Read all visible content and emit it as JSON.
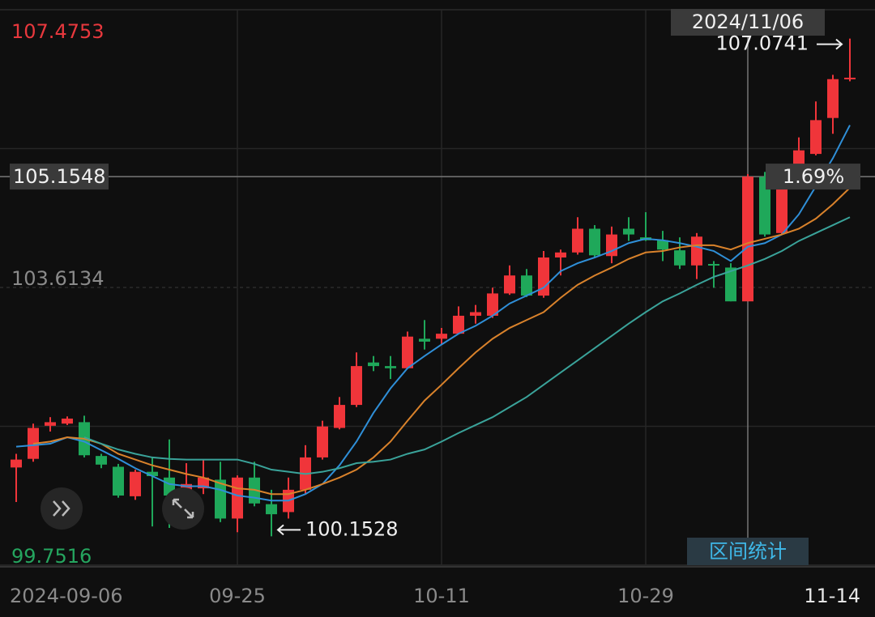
{
  "chart_data": {
    "type": "candlestick",
    "categories": [
      "2024-09-06",
      null,
      null,
      null,
      null,
      null,
      null,
      null,
      null,
      null,
      null,
      null,
      null,
      "09-25",
      null,
      null,
      null,
      null,
      null,
      null,
      null,
      null,
      null,
      null,
      null,
      "10-11",
      null,
      null,
      null,
      null,
      null,
      null,
      null,
      null,
      null,
      null,
      null,
      "10-29",
      null,
      null,
      null,
      null,
      null,
      null,
      null,
      null,
      null,
      null,
      null,
      "11-14"
    ],
    "open": [
      101.11,
      101.23,
      101.69,
      101.72,
      101.74,
      101.27,
      101.12,
      100.71,
      101.05,
      100.97,
      100.8,
      100.82,
      100.94,
      100.4,
      100.97,
      100.6,
      100.49,
      100.8,
      101.25,
      101.66,
      101.98,
      102.57,
      102.52,
      102.49,
      102.9,
      102.9,
      102.97,
      103.22,
      103.22,
      103.53,
      103.78,
      103.5,
      104.03,
      104.1,
      104.43,
      104.05,
      104.43,
      104.31,
      104.27,
      104.13,
      103.92,
      103.94,
      103.89,
      103.42,
      105.15,
      104.37,
      105.13,
      105.47,
      105.97,
      106.51
    ],
    "high": [
      101.3,
      101.72,
      101.81,
      101.82,
      101.83,
      101.3,
      101.16,
      101.08,
      101.25,
      101.5,
      101.17,
      101.22,
      101.19,
      101.0,
      101.19,
      100.8,
      100.97,
      101.42,
      101.76,
      102.09,
      102.71,
      102.66,
      102.66,
      103.0,
      103.16,
      103.05,
      103.35,
      103.37,
      103.61,
      103.92,
      103.87,
      104.12,
      104.14,
      104.59,
      104.48,
      104.46,
      104.59,
      104.66,
      104.4,
      104.31,
      104.37,
      103.98,
      103.95,
      105.19,
      105.22,
      105.13,
      105.7,
      106.2,
      106.57,
      107.0741
    ],
    "low": [
      100.63,
      101.19,
      101.61,
      101.7,
      101.25,
      101.1,
      100.69,
      100.66,
      100.29,
      100.27,
      100.35,
      100.74,
      100.35,
      100.21,
      100.57,
      100.1528,
      100.4,
      100.74,
      101.22,
      101.64,
      101.95,
      102.45,
      102.34,
      102.49,
      102.75,
      102.82,
      102.97,
      103.11,
      103.19,
      103.51,
      103.48,
      103.47,
      103.78,
      104.07,
      104.03,
      103.95,
      104.26,
      104.26,
      103.98,
      103.87,
      103.73,
      103.61,
      103.42,
      103.42,
      104.32,
      104.35,
      105.11,
      105.45,
      105.75,
      106.48
    ],
    "close": [
      101.22,
      101.66,
      101.74,
      101.79,
      101.28,
      101.15,
      100.72,
      101.05,
      100.99,
      100.72,
      100.88,
      100.97,
      100.4,
      100.97,
      100.61,
      100.46,
      100.8,
      101.25,
      101.68,
      101.98,
      102.52,
      102.52,
      102.49,
      102.93,
      102.86,
      102.97,
      103.22,
      103.27,
      103.53,
      103.78,
      103.5,
      104.03,
      104.1,
      104.43,
      104.06,
      104.35,
      104.35,
      104.27,
      104.14,
      103.92,
      104.32,
      103.92,
      103.42,
      105.1548,
      104.35,
      105.02,
      105.52,
      105.94,
      106.51,
      106.53
    ],
    "up_color": "#f0353a",
    "down_color": "#1fa85a",
    "moving_averages": [
      {
        "color": "#2f8fd8",
        "values": [
          101.4,
          101.42,
          101.44,
          101.53,
          101.47,
          101.35,
          101.23,
          101.1,
          100.99,
          100.88,
          100.85,
          100.85,
          100.8,
          100.72,
          100.69,
          100.65,
          100.65,
          100.74,
          100.88,
          101.14,
          101.47,
          101.87,
          102.21,
          102.49,
          102.66,
          102.82,
          102.97,
          103.08,
          103.22,
          103.39,
          103.5,
          103.61,
          103.84,
          103.95,
          104.03,
          104.12,
          104.23,
          104.29,
          104.27,
          104.23,
          104.18,
          104.12,
          103.98,
          104.18,
          104.23,
          104.35,
          104.63,
          105.02,
          105.41,
          105.87
        ]
      },
      {
        "color": "#d9822b",
        "values": [
          null,
          101.44,
          101.47,
          101.53,
          101.51,
          101.44,
          101.3,
          101.22,
          101.14,
          101.08,
          101.02,
          100.97,
          100.89,
          100.82,
          100.8,
          100.74,
          100.74,
          100.8,
          100.88,
          100.97,
          101.08,
          101.25,
          101.47,
          101.76,
          102.04,
          102.26,
          102.49,
          102.71,
          102.9,
          103.05,
          103.16,
          103.27,
          103.47,
          103.65,
          103.78,
          103.89,
          104.01,
          104.1,
          104.12,
          104.17,
          104.2,
          104.2,
          104.14,
          104.23,
          104.29,
          104.35,
          104.43,
          104.57,
          104.77,
          105.0
        ]
      },
      {
        "color": "#3aa39a",
        "values": [
          null,
          null,
          null,
          null,
          101.53,
          101.44,
          101.36,
          101.3,
          101.25,
          101.23,
          101.22,
          101.22,
          101.22,
          101.22,
          101.16,
          101.08,
          101.05,
          101.02,
          101.05,
          101.1,
          101.17,
          101.19,
          101.22,
          101.3,
          101.36,
          101.47,
          101.59,
          101.7,
          101.81,
          101.95,
          102.09,
          102.26,
          102.43,
          102.6,
          102.77,
          102.94,
          103.11,
          103.27,
          103.42,
          103.53,
          103.65,
          103.76,
          103.84,
          103.92,
          104.01,
          104.12,
          104.26,
          104.37,
          104.48,
          104.59
        ]
      }
    ],
    "ylim": [
      99.7516,
      107.4753
    ],
    "yticks": [
      107.4753,
      103.6134,
      99.7516
    ],
    "ytick_colors": [
      "#e8383d",
      "#8a8a8a",
      "#25a55f"
    ],
    "grid": true,
    "crosshair": {
      "index": 43,
      "date": "2024/11/06",
      "change": "1.69%"
    },
    "max_marker": {
      "index": 49
    },
    "min_marker": {
      "index": 15
    }
  },
  "ui": {
    "range_stats_button": "区间统计"
  }
}
